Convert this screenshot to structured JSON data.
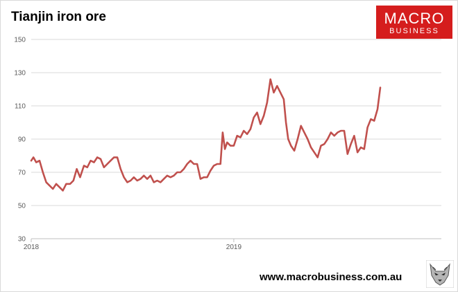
{
  "header": {
    "title": "Tianjin iron ore"
  },
  "logo": {
    "line1": "MACRO",
    "line2": "BUSINESS",
    "color": "#d51d1d"
  },
  "footer": {
    "url": "www.macrobusiness.com.au"
  },
  "chart_data": {
    "type": "line",
    "title": "Tianjin iron ore",
    "xlabel": "",
    "ylabel": "",
    "ylim": [
      30,
      150
    ],
    "yticks": [
      30,
      50,
      70,
      90,
      110,
      130,
      150
    ],
    "xticks": [
      {
        "label": "2018",
        "x": "2018-01-01"
      },
      {
        "label": "2019",
        "x": "2019-01-01"
      }
    ],
    "xlim": [
      "2018-01-01",
      "2020-01-10"
    ],
    "grid": true,
    "color": "#c0504d",
    "series": [
      {
        "points": [
          [
            "2018-01-01",
            77
          ],
          [
            "2018-01-05",
            79
          ],
          [
            "2018-01-10",
            76
          ],
          [
            "2018-01-16",
            77
          ],
          [
            "2018-01-22",
            70
          ],
          [
            "2018-01-28",
            64
          ],
          [
            "2018-02-03",
            62
          ],
          [
            "2018-02-09",
            60
          ],
          [
            "2018-02-15",
            63
          ],
          [
            "2018-02-21",
            61
          ],
          [
            "2018-02-27",
            59
          ],
          [
            "2018-03-05",
            63
          ],
          [
            "2018-03-12",
            63
          ],
          [
            "2018-03-18",
            65
          ],
          [
            "2018-03-24",
            72
          ],
          [
            "2018-03-30",
            67
          ],
          [
            "2018-04-06",
            74
          ],
          [
            "2018-04-12",
            73
          ],
          [
            "2018-04-18",
            77
          ],
          [
            "2018-04-24",
            76
          ],
          [
            "2018-04-30",
            79
          ],
          [
            "2018-05-06",
            78
          ],
          [
            "2018-05-12",
            73
          ],
          [
            "2018-05-18",
            75
          ],
          [
            "2018-05-24",
            77
          ],
          [
            "2018-05-30",
            79
          ],
          [
            "2018-06-05",
            79
          ],
          [
            "2018-06-11",
            72
          ],
          [
            "2018-06-17",
            67
          ],
          [
            "2018-06-23",
            64
          ],
          [
            "2018-06-29",
            65
          ],
          [
            "2018-07-05",
            67
          ],
          [
            "2018-07-11",
            65
          ],
          [
            "2018-07-17",
            66
          ],
          [
            "2018-07-23",
            68
          ],
          [
            "2018-07-29",
            66
          ],
          [
            "2018-08-04",
            68
          ],
          [
            "2018-08-10",
            64
          ],
          [
            "2018-08-16",
            65
          ],
          [
            "2018-08-22",
            64
          ],
          [
            "2018-08-28",
            66
          ],
          [
            "2018-09-03",
            68
          ],
          [
            "2018-09-09",
            67
          ],
          [
            "2018-09-15",
            68
          ],
          [
            "2018-09-21",
            70
          ],
          [
            "2018-09-27",
            70
          ],
          [
            "2018-10-03",
            72
          ],
          [
            "2018-10-09",
            75
          ],
          [
            "2018-10-15",
            77
          ],
          [
            "2018-10-21",
            75
          ],
          [
            "2018-10-27",
            75
          ],
          [
            "2018-11-02",
            66
          ],
          [
            "2018-11-08",
            67
          ],
          [
            "2018-11-14",
            67
          ],
          [
            "2018-11-20",
            71
          ],
          [
            "2018-11-26",
            74
          ],
          [
            "2018-12-02",
            75
          ],
          [
            "2018-12-08",
            75
          ],
          [
            "2018-12-12",
            94
          ],
          [
            "2018-12-16",
            84
          ],
          [
            "2018-12-20",
            88
          ],
          [
            "2018-12-26",
            86
          ],
          [
            "2019-01-01",
            86
          ],
          [
            "2019-01-07",
            92
          ],
          [
            "2019-01-13",
            91
          ],
          [
            "2019-01-19",
            95
          ],
          [
            "2019-01-25",
            93
          ],
          [
            "2019-01-31",
            96
          ],
          [
            "2019-02-06",
            103
          ],
          [
            "2019-02-12",
            106
          ],
          [
            "2019-02-18",
            99
          ],
          [
            "2019-02-24",
            104
          ],
          [
            "2019-03-02",
            112
          ],
          [
            "2019-03-08",
            126
          ],
          [
            "2019-03-14",
            118
          ],
          [
            "2019-03-20",
            122
          ],
          [
            "2019-03-26",
            118
          ],
          [
            "2019-04-01",
            114
          ],
          [
            "2019-04-05",
            100
          ],
          [
            "2019-04-09",
            90
          ],
          [
            "2019-04-14",
            86
          ],
          [
            "2019-04-20",
            83
          ],
          [
            "2019-04-26",
            90
          ],
          [
            "2019-05-02",
            98
          ],
          [
            "2019-05-08",
            94
          ],
          [
            "2019-05-14",
            90
          ],
          [
            "2019-05-20",
            85
          ],
          [
            "2019-05-26",
            82
          ],
          [
            "2019-06-01",
            79
          ],
          [
            "2019-06-07",
            86
          ],
          [
            "2019-06-13",
            87
          ],
          [
            "2019-06-19",
            90
          ],
          [
            "2019-06-25",
            94
          ],
          [
            "2019-07-01",
            92
          ],
          [
            "2019-07-07",
            94
          ],
          [
            "2019-07-13",
            95
          ],
          [
            "2019-07-19",
            95
          ],
          [
            "2019-07-25",
            81
          ],
          [
            "2019-07-31",
            87
          ],
          [
            "2019-08-06",
            92
          ],
          [
            "2019-08-12",
            82
          ],
          [
            "2019-08-18",
            85
          ],
          [
            "2019-08-24",
            84
          ],
          [
            "2019-08-30",
            97
          ],
          [
            "2019-09-05",
            102
          ],
          [
            "2019-09-11",
            101
          ],
          [
            "2019-09-17",
            108
          ],
          [
            "2019-09-22",
            121
          ]
        ]
      }
    ]
  }
}
